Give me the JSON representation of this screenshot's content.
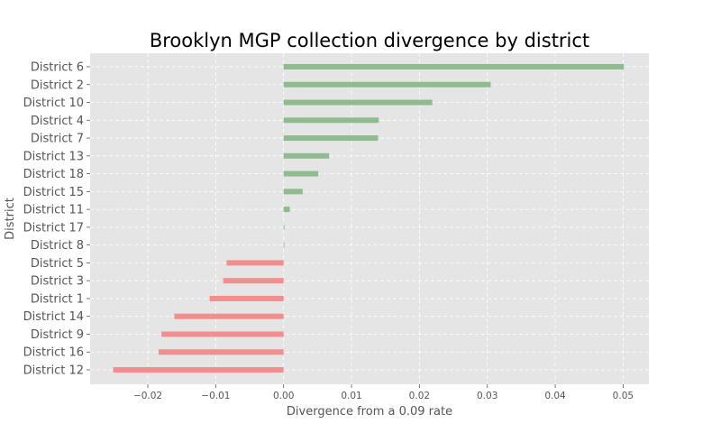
{
  "chart_data": {
    "type": "bar",
    "orientation": "horizontal",
    "title": "Brooklyn MGP collection divergence by district",
    "xlabel": "Divergence from a 0.09 rate",
    "ylabel": "District",
    "xlim": [
      -0.0285,
      0.0538
    ],
    "xticks": [
      -0.02,
      -0.01,
      0.0,
      0.01,
      0.02,
      0.03,
      0.04,
      0.05
    ],
    "xtick_labels": [
      "−0.02",
      "−0.01",
      "0.00",
      "0.01",
      "0.02",
      "0.03",
      "0.04",
      "0.05"
    ],
    "grid": true,
    "categories": [
      "District 6",
      "District 2",
      "District 10",
      "District 4",
      "District 7",
      "District 13",
      "District 18",
      "District 15",
      "District 11",
      "District 17",
      "District 8",
      "District 5",
      "District 3",
      "District 1",
      "District 14",
      "District 9",
      "District 16",
      "District 12"
    ],
    "values": [
      0.0501,
      0.0305,
      0.0219,
      0.014,
      0.0139,
      0.0067,
      0.0051,
      0.0028,
      0.0009,
      0.0001,
      0.0001,
      -0.0084,
      -0.0089,
      -0.0109,
      -0.0161,
      -0.018,
      -0.0184,
      -0.0251
    ],
    "colors": {
      "positive": "#8fbc8f",
      "negative": "#f08f8f",
      "background": "#e5e5e5",
      "grid": "#ffffff"
    }
  }
}
